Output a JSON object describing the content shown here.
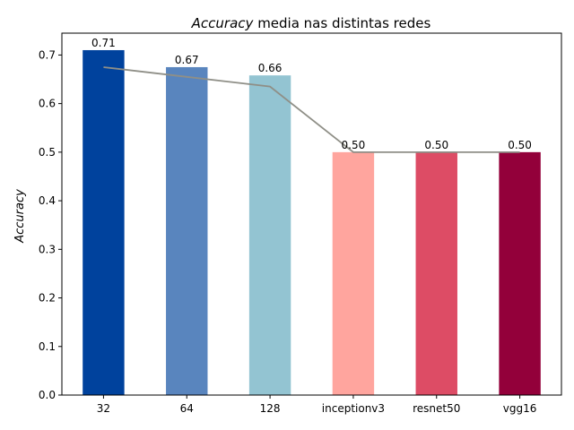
{
  "chart_data": {
    "type": "bar",
    "title_italic": "Accuracy",
    "title_rest": " media nas distintas redes",
    "ylabel": "Accuracy",
    "xlabel": "",
    "categories": [
      "32",
      "64",
      "128",
      "inceptionv3",
      "resnet50",
      "vgg16"
    ],
    "values": [
      0.71,
      0.675,
      0.658,
      0.5,
      0.5,
      0.5
    ],
    "data_labels": [
      "0.71",
      "0.67",
      "0.66",
      "0.50",
      "0.50",
      "0.50"
    ],
    "colors": [
      "#00429d",
      "#5985be",
      "#93c4d2",
      "#ffa59e",
      "#dd4c65",
      "#93003a"
    ],
    "trend_line": {
      "values": [
        0.675,
        0.655,
        0.635,
        0.5,
        0.5,
        0.5
      ],
      "color": "#8f8f87"
    },
    "ylim": [
      0,
      0.745
    ],
    "yticks": [
      0.0,
      0.1,
      0.2,
      0.3,
      0.4,
      0.5,
      0.6,
      0.7
    ],
    "ytick_labels": [
      "0.0",
      "0.1",
      "0.2",
      "0.3",
      "0.4",
      "0.5",
      "0.6",
      "0.7"
    ],
    "grid": false,
    "legend": "none"
  }
}
